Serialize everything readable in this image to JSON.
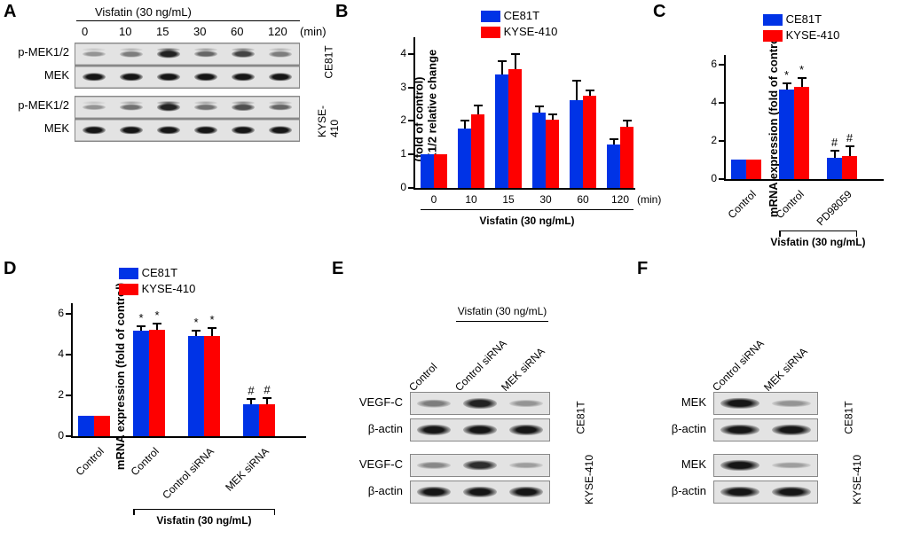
{
  "colors": {
    "CE81T": "#0033e6",
    "KYSE410": "#fe0000",
    "axis": "#000000",
    "background": "#ffffff"
  },
  "panelA": {
    "label": "A",
    "treatment": "Visfatin (30 ng/mL)",
    "timepoints": [
      "0",
      "10",
      "15",
      "30",
      "60",
      "120"
    ],
    "unit": "(min)",
    "rows": [
      {
        "label": "p-MEK1/2",
        "cellline": "CE81T",
        "intensity": [
          0.35,
          0.45,
          0.85,
          0.55,
          0.7,
          0.45
        ],
        "doublet": true
      },
      {
        "label": "MEK",
        "cellline": "CE81T",
        "intensity": [
          0.9,
          0.9,
          0.9,
          0.9,
          0.9,
          0.9
        ]
      },
      {
        "label": "p-MEK1/2",
        "cellline": "KYSE-410",
        "intensity": [
          0.35,
          0.5,
          0.85,
          0.5,
          0.65,
          0.55
        ],
        "doublet": true
      },
      {
        "label": "MEK",
        "cellline": "KYSE-410",
        "intensity": [
          0.9,
          0.9,
          0.9,
          0.9,
          0.9,
          0.9
        ]
      }
    ]
  },
  "panelB": {
    "label": "B",
    "legend": [
      {
        "name": "CE81T",
        "swatch": "#0033e6"
      },
      {
        "name": "KYSE-410",
        "swatch": "#fe0000"
      }
    ],
    "ylabels": [
      "p-MEK1/2 relative change",
      "(fold of control)"
    ],
    "ylim": [
      0,
      4.5
    ],
    "ticks": [
      0,
      1,
      2,
      3,
      4
    ],
    "x": [
      "0",
      "10",
      "15",
      "30",
      "60",
      "120"
    ],
    "unit": "(min)",
    "sublabel": "Visfatin (30 ng/mL)",
    "series": {
      "CE81T": {
        "vals": [
          1.0,
          1.78,
          3.38,
          2.25,
          2.62,
          1.3
        ],
        "err": [
          0.0,
          0.25,
          0.42,
          0.22,
          0.6,
          0.18
        ]
      },
      "KYSE410": {
        "vals": [
          1.0,
          2.2,
          3.55,
          2.05,
          2.75,
          1.82
        ],
        "err": [
          0.0,
          0.3,
          0.48,
          0.18,
          0.2,
          0.23
        ]
      }
    }
  },
  "panelC": {
    "label": "C",
    "legend": [
      {
        "name": "CE81T",
        "swatch": "#0033e6"
      },
      {
        "name": "KYSE-410",
        "swatch": "#fe0000"
      }
    ],
    "ylabel": "mRNA expression (fold of control)",
    "ylim": [
      0,
      6.5
    ],
    "ticks": [
      0,
      2,
      4,
      6
    ],
    "groups": [
      "Control",
      "Control",
      "PD98059"
    ],
    "series": {
      "CE81T": {
        "vals": [
          1.0,
          4.7,
          1.1
        ],
        "err": [
          0.0,
          0.35,
          0.45
        ],
        "annot": [
          "",
          "*",
          "#"
        ]
      },
      "KYSE410": {
        "vals": [
          1.0,
          4.85,
          1.2
        ],
        "err": [
          0.0,
          0.5,
          0.55
        ],
        "annot": [
          "",
          "*",
          "#"
        ]
      }
    },
    "sublabel": "Visfatin (30 ng/mL)",
    "bracket_groups": [
      1,
      2
    ]
  },
  "panelD": {
    "label": "D",
    "legend": [
      {
        "name": "CE81T",
        "swatch": "#0033e6"
      },
      {
        "name": "KYSE-410",
        "swatch": "#fe0000"
      }
    ],
    "ylabel": "mRNA expression (fold of control)",
    "ylim": [
      0,
      6.5
    ],
    "ticks": [
      0,
      2,
      4,
      6
    ],
    "groups": [
      "Control",
      "Control",
      "Control siRNA",
      "MEK siRNA"
    ],
    "series": {
      "CE81T": {
        "vals": [
          1.0,
          5.15,
          4.9,
          1.55
        ],
        "err": [
          0.0,
          0.28,
          0.3,
          0.3
        ],
        "annot": [
          "",
          "*",
          "*",
          "#"
        ]
      },
      "KYSE410": {
        "vals": [
          1.0,
          5.18,
          4.9,
          1.55
        ],
        "err": [
          0.0,
          0.35,
          0.45,
          0.35
        ],
        "annot": [
          "",
          "*",
          "*",
          "#"
        ]
      }
    },
    "sublabel": "Visfatin (30 ng/mL)",
    "bracket_groups": [
      1,
      2,
      3
    ]
  },
  "panelE": {
    "label": "E",
    "treatment": "Visfatin (30 ng/mL)",
    "cols": [
      "Control",
      "Control siRNA",
      "MEK siRNA"
    ],
    "bracket_cols": [
      1,
      2
    ],
    "blocks": [
      {
        "cellline": "CE81T",
        "rows": [
          {
            "label": "VEGF-C",
            "intensity": [
              0.45,
              0.85,
              0.35
            ]
          },
          {
            "label": "β-actin",
            "intensity": [
              0.9,
              0.9,
              0.9
            ]
          }
        ]
      },
      {
        "cellline": "KYSE-410",
        "rows": [
          {
            "label": "VEGF-C",
            "intensity": [
              0.4,
              0.8,
              0.3
            ]
          },
          {
            "label": "β-actin",
            "intensity": [
              0.9,
              0.9,
              0.9
            ]
          }
        ]
      }
    ]
  },
  "panelF": {
    "label": "F",
    "cols": [
      "Control siRNA",
      "MEK siRNA"
    ],
    "blocks": [
      {
        "cellline": "CE81T",
        "rows": [
          {
            "label": "MEK",
            "intensity": [
              0.9,
              0.35
            ]
          },
          {
            "label": "β-actin",
            "intensity": [
              0.9,
              0.9
            ]
          }
        ]
      },
      {
        "cellline": "KYSE-410",
        "rows": [
          {
            "label": "MEK",
            "intensity": [
              0.9,
              0.3
            ]
          },
          {
            "label": "β-actin",
            "intensity": [
              0.9,
              0.9
            ]
          }
        ]
      }
    ]
  }
}
